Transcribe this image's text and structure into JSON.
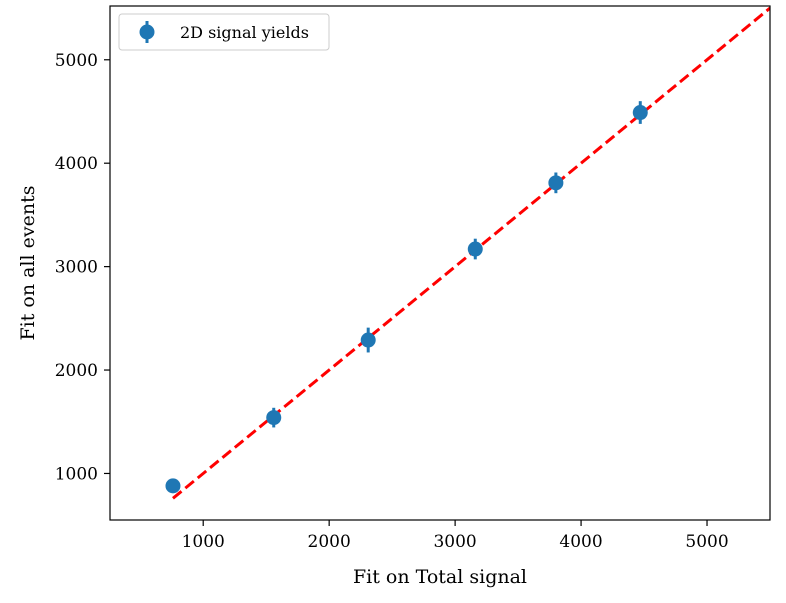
{
  "chart_data": {
    "type": "scatter",
    "xlabel": "Fit on Total signal",
    "ylabel": "Fit on all events",
    "xlim": [
      260,
      5500
    ],
    "ylim": [
      550,
      5520
    ],
    "xticks": [
      1000,
      2000,
      3000,
      4000,
      5000
    ],
    "yticks": [
      1000,
      2000,
      3000,
      4000,
      5000
    ],
    "xtick_labels": [
      "1000",
      "2000",
      "3000",
      "4000",
      "5000"
    ],
    "ytick_labels": [
      "1000",
      "2000",
      "3000",
      "4000",
      "5000"
    ],
    "grid": false,
    "legend_position": "top-left",
    "series": [
      {
        "name": "2D signal yields",
        "color": "#1f77b4",
        "marker": "circle",
        "points": [
          {
            "x": 760,
            "y": 880,
            "yerr": 40
          },
          {
            "x": 1560,
            "y": 1540,
            "yerr": 95
          },
          {
            "x": 2310,
            "y": 2290,
            "yerr": 120
          },
          {
            "x": 3160,
            "y": 3170,
            "yerr": 100
          },
          {
            "x": 3800,
            "y": 3810,
            "yerr": 100
          },
          {
            "x": 4470,
            "y": 4490,
            "yerr": 110
          }
        ]
      }
    ],
    "reference_line": {
      "style": "dashed",
      "color": "#ff0000",
      "x": [
        760,
        5500
      ],
      "y": [
        760,
        5500
      ]
    }
  }
}
